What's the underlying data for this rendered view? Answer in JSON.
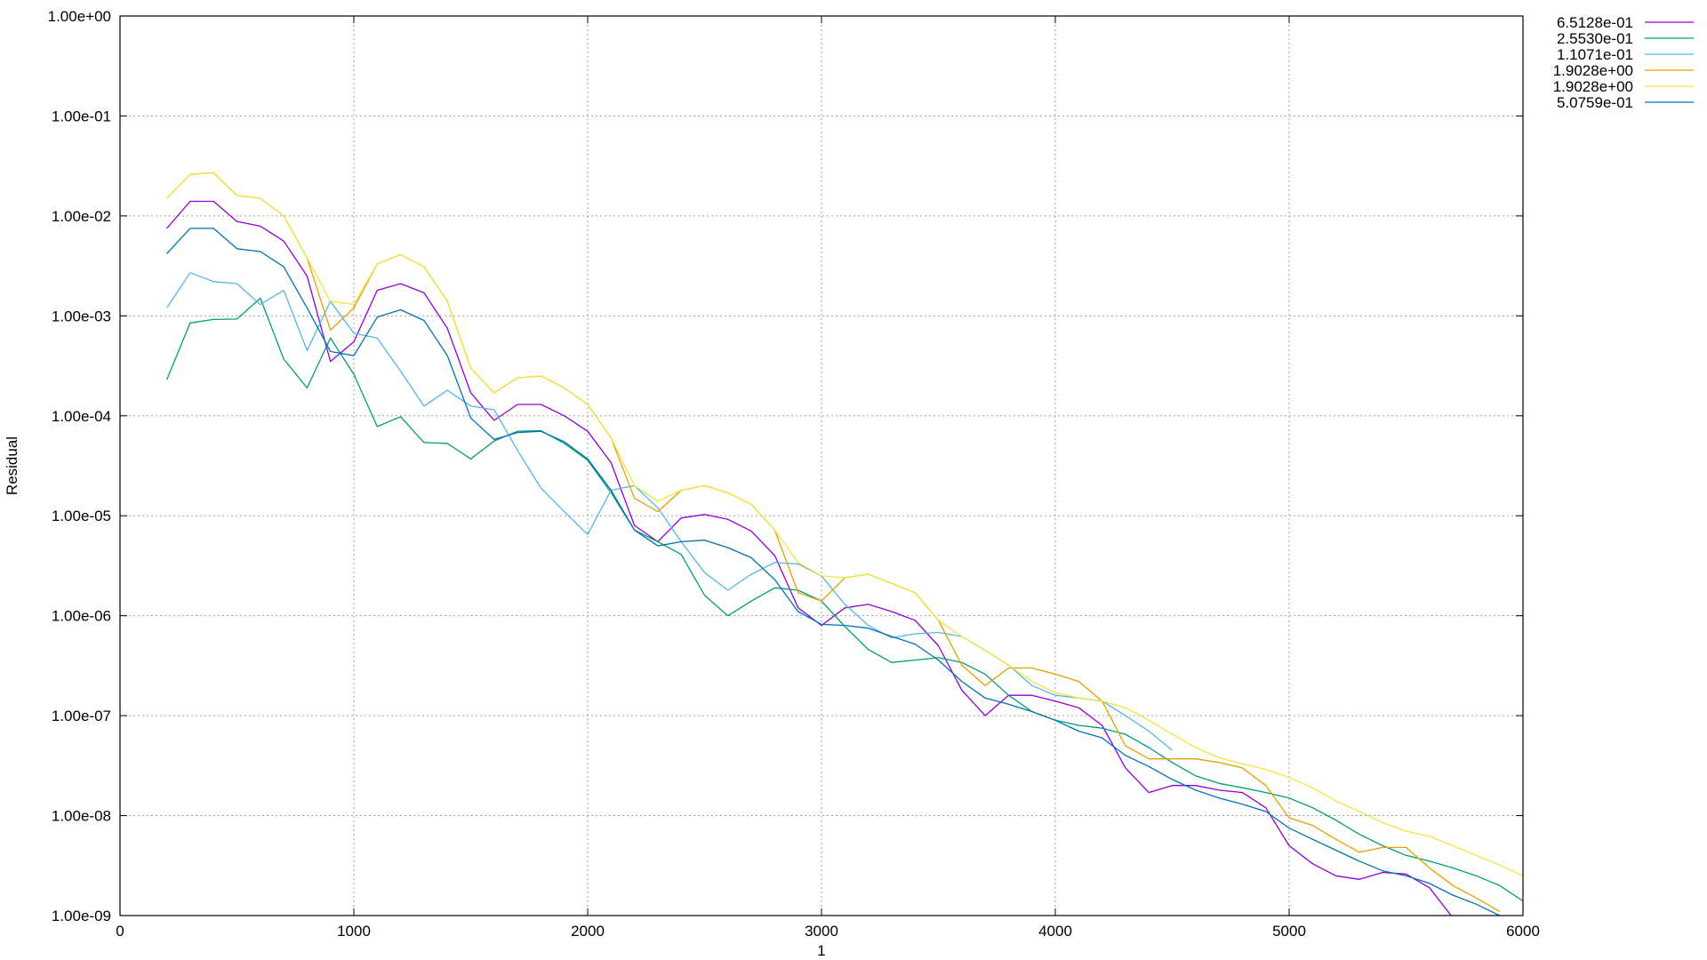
{
  "chart_data": {
    "type": "line",
    "title": "",
    "xlabel": "1",
    "ylabel": "Residual",
    "xlim": [
      0,
      6000
    ],
    "ylim": [
      1e-09,
      1
    ],
    "yscale": "log",
    "grid": true,
    "legend_position": "outside-top-right",
    "x_ticks": [
      "0",
      "1000",
      "2000",
      "3000",
      "4000",
      "5000",
      "6000"
    ],
    "y_ticks": [
      "1.00e-09",
      "1.00e-08",
      "1.00e-07",
      "1.00e-06",
      "1.00e-05",
      "1.00e-04",
      "1.00e-03",
      "1.00e-02",
      "1.00e-01",
      "1.00e+00"
    ],
    "series": [
      {
        "name": "6.5128e-01",
        "color": "#9400d3",
        "x": [
          200,
          300,
          400,
          500,
          600,
          700,
          800,
          900,
          1000,
          1100,
          1200,
          1300,
          1400,
          1500,
          1600,
          1700,
          1800,
          1900,
          2000,
          2100,
          2200,
          2300,
          2400,
          2500,
          2600,
          2700,
          2800,
          2900,
          3000,
          3100,
          3200,
          3300,
          3400,
          3500,
          3600,
          3700,
          3800,
          3900,
          4000,
          4100,
          4200,
          4300,
          4400,
          4500,
          4600,
          4700,
          4800,
          4900,
          5000,
          5100,
          5200,
          5300,
          5400,
          5500,
          5600,
          5700
        ],
        "values": [
          0.0075,
          0.014,
          0.014,
          0.0088,
          0.0079,
          0.0056,
          0.0025,
          0.00035,
          0.00055,
          0.0018,
          0.0021,
          0.0017,
          0.00075,
          0.00017,
          9e-05,
          0.00013,
          0.00013,
          0.0001,
          7e-05,
          3.4e-05,
          8e-06,
          5.5e-06,
          9.5e-06,
          1.03e-05,
          9.2e-06,
          7e-06,
          4e-06,
          1.2e-06,
          8e-07,
          1.2e-06,
          1.3e-06,
          1.1e-06,
          9e-07,
          5e-07,
          1.8e-07,
          1e-07,
          1.6e-07,
          1.6e-07,
          1.4e-07,
          1.2e-07,
          8e-08,
          3e-08,
          1.7e-08,
          2e-08,
          2e-08,
          1.8e-08,
          1.7e-08,
          1.2e-08,
          5e-09,
          3.3e-09,
          2.5e-09,
          2.3e-09,
          2.7e-09,
          2.6e-09,
          1.9e-09,
          9.5e-10
        ]
      },
      {
        "name": "2.5530e-01",
        "color": "#009e73",
        "x": [
          200,
          300,
          400,
          500,
          600,
          700,
          800,
          900,
          1000,
          1100,
          1200,
          1300,
          1400,
          1500,
          1600,
          1700,
          1800,
          1900,
          2000,
          2100,
          2200,
          2300,
          2400,
          2500,
          2600,
          2700,
          2800,
          2900,
          3000,
          3100,
          3200,
          3300,
          3400,
          3500,
          3600,
          3700,
          3800,
          3900,
          4000,
          4100,
          4200,
          4300,
          4400,
          4500,
          4600,
          4700,
          4800,
          4900,
          5000,
          5100,
          5200,
          5300,
          5400,
          5500,
          5600,
          5700,
          5800,
          5900,
          6000
        ],
        "values": [
          0.00023,
          0.00085,
          0.00092,
          0.00093,
          0.0015,
          0.00037,
          0.00019,
          0.0006,
          0.00026,
          7.8e-05,
          9.8e-05,
          5.4e-05,
          5.3e-05,
          3.7e-05,
          5.6e-05,
          7e-05,
          7.1e-05,
          5.3e-05,
          3.6e-05,
          1.7e-05,
          7.2e-06,
          5.5e-06,
          4.1e-06,
          1.6e-06,
          1e-06,
          1.4e-06,
          1.9e-06,
          1.8e-06,
          1.4e-06,
          7.8e-07,
          4.6e-07,
          3.4e-07,
          3.6e-07,
          3.8e-07,
          3.4e-07,
          2.6e-07,
          1.6e-07,
          1.1e-07,
          9e-08,
          8e-08,
          7.5e-08,
          6.5e-08,
          4.8e-08,
          3.4e-08,
          2.5e-08,
          2.1e-08,
          1.9e-08,
          1.7e-08,
          1.5e-08,
          1.2e-08,
          9e-09,
          6.5e-09,
          5e-09,
          4e-09,
          3.5e-09,
          3e-09,
          2.5e-09,
          2e-09,
          1.4e-09
        ]
      },
      {
        "name": "1.1071e-01",
        "color": "#56b4e9",
        "x": [
          200,
          300,
          400,
          500,
          600,
          700,
          800,
          900,
          1000,
          1100,
          1200,
          1300,
          1400,
          1500,
          1600,
          1700,
          1800,
          1900,
          2000,
          2100,
          2200,
          2300,
          2400,
          2500,
          2600,
          2700,
          2800,
          2900,
          3000,
          3100,
          3200,
          3300,
          3400,
          3500,
          3600,
          3700,
          3800,
          3900,
          4000,
          4100,
          4200,
          4300,
          4400,
          4500
        ],
        "values": [
          0.0012,
          0.0027,
          0.0022,
          0.0021,
          0.0013,
          0.0018,
          0.00045,
          0.0014,
          0.00067,
          0.0006,
          0.00028,
          0.000125,
          0.00018,
          0.000125,
          0.000115,
          4.5e-05,
          1.9e-05,
          1.1e-05,
          6.5e-06,
          1.8e-05,
          2e-05,
          1.2e-05,
          5.5e-06,
          2.7e-06,
          1.8e-06,
          2.6e-06,
          3.4e-06,
          3.3e-06,
          2.5e-06,
          1.3e-06,
          8e-07,
          6e-07,
          6.6e-07,
          6.8e-07,
          6.2e-07,
          4.5e-07,
          3.2e-07,
          2e-07,
          1.6e-07,
          1.5e-07,
          1.4e-07,
          1e-07,
          7e-08,
          4.5e-08
        ]
      },
      {
        "name": "1.9028e+00",
        "color": "#e69f00",
        "x": [
          200,
          300,
          400,
          500,
          600,
          700,
          800,
          900,
          1000,
          1100,
          1200,
          1300,
          1400,
          1500,
          1600,
          1700,
          1800,
          1900,
          2000,
          2100,
          2200,
          2300,
          2400,
          2500,
          2600,
          2700,
          2800,
          2900,
          3000,
          3100,
          3200,
          3300,
          3400,
          3500,
          3600,
          3700,
          3800,
          3900,
          4000,
          4100,
          4200,
          4300,
          4400,
          4500,
          4600,
          4700,
          4800,
          4900,
          5000,
          5100,
          5200,
          5300,
          5400,
          5500,
          5600,
          5700,
          5800,
          5900
        ],
        "values": [
          0.015,
          0.026,
          0.027,
          0.016,
          0.015,
          0.01,
          0.0038,
          0.00072,
          0.0012,
          0.0033,
          0.0041,
          0.0031,
          0.0014,
          0.0003,
          0.00017,
          0.00024,
          0.00025,
          0.00019,
          0.00013,
          6e-05,
          1.5e-05,
          1.1e-05,
          1.8e-05,
          2e-05,
          1.7e-05,
          1.3e-05,
          7.2e-06,
          1.7e-06,
          1.4e-06,
          2.4e-06,
          2.6e-06,
          2.1e-06,
          1.7e-06,
          9e-07,
          3.2e-07,
          2e-07,
          3e-07,
          3e-07,
          2.6e-07,
          2.2e-07,
          1.4e-07,
          5e-08,
          3.7e-08,
          3.7e-08,
          3.7e-08,
          3.4e-08,
          3e-08,
          2e-08,
          9.5e-09,
          8e-09,
          5.8e-09,
          4.3e-09,
          4.8e-09,
          4.8e-09,
          3e-09,
          2e-09,
          1.5e-09,
          1.1e-09
        ]
      },
      {
        "name": "1.9028e+00",
        "color": "#f0e442",
        "x": [
          200,
          300,
          400,
          500,
          600,
          700,
          800,
          900,
          1000,
          1100,
          1200,
          1300,
          1400,
          1500,
          1600,
          1700,
          1800,
          1900,
          2000,
          2100,
          2200,
          2300,
          2400,
          2500,
          2600,
          2700,
          2800,
          2900,
          3000,
          3100,
          3200,
          3300,
          3400,
          3500,
          3600,
          3700,
          3800,
          3900,
          4000,
          4100,
          4200,
          4300,
          4400,
          4500,
          4600,
          4700,
          4800,
          4900,
          5000,
          5100,
          5200,
          5300,
          5400,
          5500,
          5600,
          5700,
          5800,
          5900,
          6000
        ],
        "values": [
          0.015,
          0.026,
          0.027,
          0.016,
          0.015,
          0.01,
          0.0038,
          0.0014,
          0.0013,
          0.0033,
          0.0041,
          0.0031,
          0.0014,
          0.0003,
          0.00017,
          0.00024,
          0.00025,
          0.00019,
          0.00013,
          6e-05,
          2e-05,
          1.4e-05,
          1.8e-05,
          2e-05,
          1.7e-05,
          1.3e-05,
          7.2e-06,
          3.4e-06,
          2.5e-06,
          2.4e-06,
          2.6e-06,
          2.1e-06,
          1.7e-06,
          9e-07,
          6.2e-07,
          4.5e-07,
          3.2e-07,
          2.2e-07,
          1.7e-07,
          1.5e-07,
          1.4e-07,
          1.2e-07,
          9e-08,
          6.5e-08,
          4.8e-08,
          3.8e-08,
          3.3e-08,
          2.9e-08,
          2.4e-08,
          1.9e-08,
          1.4e-08,
          1.1e-08,
          8.5e-09,
          7e-09,
          6.2e-09,
          5e-09,
          4e-09,
          3.2e-09,
          2.5e-09
        ]
      },
      {
        "name": "5.0759e-01",
        "color": "#0072b2",
        "x": [
          200,
          300,
          400,
          500,
          600,
          700,
          800,
          900,
          1000,
          1100,
          1200,
          1300,
          1400,
          1500,
          1600,
          1700,
          1800,
          1900,
          2000,
          2100,
          2200,
          2300,
          2400,
          2500,
          2600,
          2700,
          2800,
          2900,
          3000,
          3100,
          3200,
          3300,
          3400,
          3500,
          3600,
          3700,
          3800,
          3900,
          4000,
          4100,
          4200,
          4300,
          4400,
          4500,
          4600,
          4700,
          4800,
          4900,
          5000,
          5100,
          5200,
          5300,
          5400,
          5500,
          5600,
          5700,
          5800,
          5900,
          6000
        ],
        "values": [
          0.0042,
          0.0075,
          0.0075,
          0.0047,
          0.0044,
          0.0031,
          0.0012,
          0.00044,
          0.0004,
          0.00097,
          0.00115,
          0.0009,
          0.0004,
          9.5e-05,
          5.8e-05,
          6.8e-05,
          7e-05,
          5.5e-05,
          3.7e-05,
          1.8e-05,
          7.2e-06,
          5e-06,
          5.5e-06,
          5.7e-06,
          4.8e-06,
          3.8e-06,
          2.3e-06,
          1.1e-06,
          8.2e-07,
          8e-07,
          7.5e-07,
          6.2e-07,
          5.2e-07,
          3.6e-07,
          2.2e-07,
          1.5e-07,
          1.3e-07,
          1.1e-07,
          9e-08,
          7e-08,
          6e-08,
          4e-08,
          3.1e-08,
          2.3e-08,
          1.8e-08,
          1.5e-08,
          1.3e-08,
          1.1e-08,
          7.5e-09,
          5.8e-09,
          4.5e-09,
          3.5e-09,
          2.8e-09,
          2.5e-09,
          2.1e-09,
          1.6e-09,
          1.3e-09,
          1e-09,
          8e-10
        ]
      }
    ]
  }
}
